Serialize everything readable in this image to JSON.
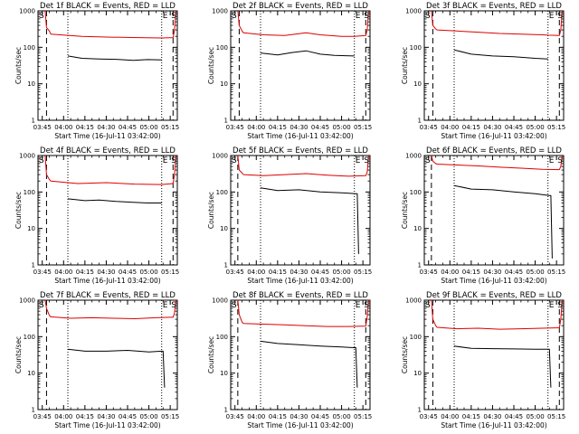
{
  "colors": {
    "events": "#000000",
    "lld": "#dd0000",
    "axes": "#000000",
    "background": "#ffffff"
  },
  "common": {
    "ylabel": "Counts/sec",
    "xlabel": "Start Time (16-Jul-11 03:42:00)",
    "xticks": [
      "03:45",
      "04:00",
      "04:15",
      "04:30",
      "04:45",
      "05:00",
      "05:15"
    ],
    "yticks": [
      "1",
      "10",
      "100",
      "1000"
    ],
    "markers": {
      "start": "S",
      "end": "E"
    },
    "x_range_min": [
      -3,
      95
    ],
    "y_range": [
      1,
      1000
    ],
    "y_scale": "log"
  },
  "chart_data": [
    {
      "type": "line",
      "title": "Det 1f BLACK = Events, RED = LLD",
      "series": [
        {
          "name": "Events",
          "x": [
            18,
            28,
            40,
            52,
            64,
            74,
            84
          ],
          "y": [
            58,
            50,
            48,
            47,
            44,
            46,
            45
          ]
        },
        {
          "name": "LLD",
          "x": [
            2,
            3,
            5,
            6,
            28,
            48,
            68,
            84,
            92,
            93,
            94
          ],
          "y": [
            1000,
            350,
            280,
            230,
            200,
            190,
            185,
            180,
            185,
            300,
            1000
          ]
        }
      ],
      "dashed_x": [
        3,
        92
      ],
      "dotted_x": [
        18,
        84
      ]
    },
    {
      "type": "line",
      "title": "Det 2f BLACK = Events, RED = LLD",
      "series": [
        {
          "name": "Events",
          "x": [
            18,
            30,
            40,
            50,
            60,
            70,
            84
          ],
          "y": [
            70,
            62,
            72,
            80,
            65,
            60,
            58
          ]
        },
        {
          "name": "LLD",
          "x": [
            2,
            3,
            5,
            6,
            20,
            35,
            50,
            60,
            75,
            84,
            92,
            93,
            94
          ],
          "y": [
            1000,
            400,
            280,
            250,
            220,
            210,
            250,
            220,
            200,
            200,
            210,
            300,
            1000
          ]
        }
      ],
      "dashed_x": [
        3,
        92
      ],
      "dotted_x": [
        18,
        84
      ]
    },
    {
      "type": "line",
      "title": "Det 3f BLACK = Events, RED = LLD",
      "series": [
        {
          "name": "Events",
          "x": [
            18,
            30,
            45,
            60,
            75,
            84
          ],
          "y": [
            85,
            65,
            58,
            55,
            50,
            48
          ]
        },
        {
          "name": "LLD",
          "x": [
            2,
            3,
            5,
            6,
            20,
            35,
            50,
            65,
            80,
            84,
            92,
            93,
            94
          ],
          "y": [
            1000,
            400,
            320,
            300,
            280,
            260,
            240,
            230,
            220,
            215,
            210,
            300,
            1000
          ]
        }
      ],
      "dashed_x": [
        3,
        92
      ],
      "dotted_x": [
        18,
        84
      ]
    },
    {
      "type": "line",
      "title": "Det 4f BLACK = Events, RED = LLD",
      "series": [
        {
          "name": "Events",
          "x": [
            18,
            30,
            40,
            52,
            64,
            74,
            84
          ],
          "y": [
            65,
            58,
            60,
            55,
            52,
            50,
            50
          ]
        },
        {
          "name": "LLD",
          "x": [
            2,
            3,
            5,
            6,
            25,
            45,
            65,
            84,
            92,
            93,
            94
          ],
          "y": [
            1000,
            300,
            220,
            200,
            170,
            180,
            165,
            160,
            170,
            300,
            1000
          ]
        }
      ],
      "dashed_x": [
        3,
        92
      ],
      "dotted_x": [
        18,
        84
      ]
    },
    {
      "type": "line",
      "title": "Det 5f BLACK = Events, RED = LLD",
      "series": [
        {
          "name": "Events",
          "x": [
            18,
            30,
            45,
            60,
            75,
            85,
            86,
            87
          ],
          "y": [
            130,
            110,
            115,
            100,
            95,
            90,
            90,
            2
          ]
        },
        {
          "name": "LLD",
          "x": [
            2,
            3,
            5,
            6,
            20,
            35,
            50,
            65,
            80,
            92,
            93,
            94
          ],
          "y": [
            1000,
            400,
            330,
            300,
            280,
            300,
            320,
            290,
            270,
            280,
            350,
            1000
          ]
        }
      ],
      "dashed_x": [
        2
      ],
      "dotted_x": [
        18,
        84
      ]
    },
    {
      "type": "line",
      "title": "Det 6f BLACK = Events, RED = LLD",
      "series": [
        {
          "name": "Events",
          "x": [
            18,
            30,
            45,
            60,
            75,
            85,
            86,
            87
          ],
          "y": [
            150,
            120,
            115,
            100,
            90,
            80,
            80,
            1.5
          ]
        },
        {
          "name": "LLD",
          "x": [
            2,
            3,
            5,
            6,
            20,
            35,
            50,
            65,
            80,
            92,
            93,
            94
          ],
          "y": [
            1000,
            700,
            600,
            580,
            550,
            520,
            480,
            450,
            420,
            410,
            500,
            1000
          ]
        }
      ],
      "dashed_x": [
        2
      ],
      "dotted_x": [
        18,
        84
      ]
    },
    {
      "type": "line",
      "title": "Det 7f BLACK = Events, RED = LLD",
      "series": [
        {
          "name": "Events",
          "x": [
            18,
            30,
            45,
            60,
            75,
            84,
            85,
            86
          ],
          "y": [
            45,
            40,
            40,
            42,
            38,
            40,
            40,
            4
          ]
        },
        {
          "name": "LLD",
          "x": [
            2,
            3,
            5,
            6,
            20,
            35,
            50,
            65,
            80,
            90,
            92,
            93,
            94
          ],
          "y": [
            1000,
            600,
            380,
            350,
            320,
            330,
            320,
            310,
            330,
            340,
            340,
            450,
            1000
          ]
        }
      ],
      "dashed_x": [
        3
      ],
      "dotted_x": [
        18,
        84
      ]
    },
    {
      "type": "line",
      "title": "Det 8f BLACK = Events, RED = LLD",
      "series": [
        {
          "name": "Events",
          "x": [
            18,
            30,
            45,
            60,
            75,
            84,
            85,
            86
          ],
          "y": [
            75,
            65,
            60,
            55,
            52,
            50,
            50,
            4
          ]
        },
        {
          "name": "LLD",
          "x": [
            2,
            3,
            5,
            6,
            20,
            35,
            50,
            65,
            80,
            92,
            93,
            94
          ],
          "y": [
            1000,
            400,
            250,
            230,
            220,
            210,
            200,
            190,
            190,
            195,
            350,
            1000
          ]
        }
      ],
      "dashed_x": [
        2,
        92
      ],
      "dotted_x": [
        18,
        84
      ]
    },
    {
      "type": "line",
      "title": "Det 9f BLACK = Events, RED = LLD",
      "series": [
        {
          "name": "Events",
          "x": [
            18,
            30,
            45,
            60,
            75,
            84,
            85,
            86
          ],
          "y": [
            55,
            48,
            47,
            46,
            45,
            45,
            45,
            4
          ]
        },
        {
          "name": "LLD",
          "x": [
            2,
            3,
            5,
            6,
            20,
            35,
            50,
            65,
            80,
            92,
            93,
            94
          ],
          "y": [
            1000,
            300,
            200,
            180,
            165,
            170,
            160,
            165,
            170,
            175,
            300,
            1000
          ]
        }
      ],
      "dashed_x": [
        3,
        92
      ],
      "dotted_x": [
        18,
        84
      ]
    }
  ]
}
